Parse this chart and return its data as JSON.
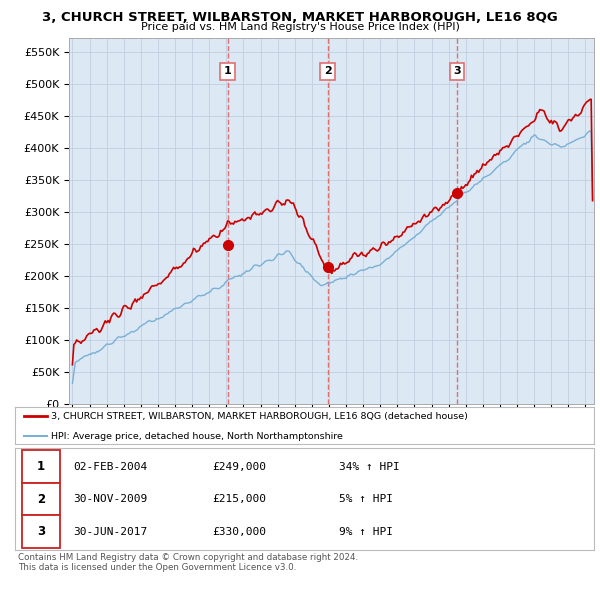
{
  "title": "3, CHURCH STREET, WILBARSTON, MARKET HARBOROUGH, LE16 8QG",
  "subtitle": "Price paid vs. HM Land Registry's House Price Index (HPI)",
  "ylabel_ticks": [
    "£0",
    "£50K",
    "£100K",
    "£150K",
    "£200K",
    "£250K",
    "£300K",
    "£350K",
    "£400K",
    "£450K",
    "£500K",
    "£550K"
  ],
  "ytick_vals": [
    0,
    50000,
    100000,
    150000,
    200000,
    250000,
    300000,
    350000,
    400000,
    450000,
    500000,
    550000
  ],
  "ylim": [
    0,
    572000
  ],
  "xlim_start": 1994.8,
  "xlim_end": 2025.5,
  "red_color": "#cc0000",
  "blue_color": "#7bafd4",
  "dashed_color": "#e07070",
  "bg_color": "#dce9f5",
  "grid_color": "#c0cfe0",
  "sale_markers": [
    {
      "year": 2004.08,
      "price": 249000,
      "label": "1"
    },
    {
      "year": 2009.92,
      "price": 215000,
      "label": "2"
    },
    {
      "year": 2017.49,
      "price": 330000,
      "label": "3"
    }
  ],
  "legend_line1": "3, CHURCH STREET, WILBARSTON, MARKET HARBOROUGH, LE16 8QG (detached house)",
  "legend_line2": "HPI: Average price, detached house, North Northamptonshire",
  "table_rows": [
    [
      "1",
      "02-FEB-2004",
      "£249,000",
      "34% ↑ HPI"
    ],
    [
      "2",
      "30-NOV-2009",
      "£215,000",
      "5% ↑ HPI"
    ],
    [
      "3",
      "30-JUN-2017",
      "£330,000",
      "9% ↑ HPI"
    ]
  ],
  "footer": "Contains HM Land Registry data © Crown copyright and database right 2024.\nThis data is licensed under the Open Government Licence v3.0."
}
